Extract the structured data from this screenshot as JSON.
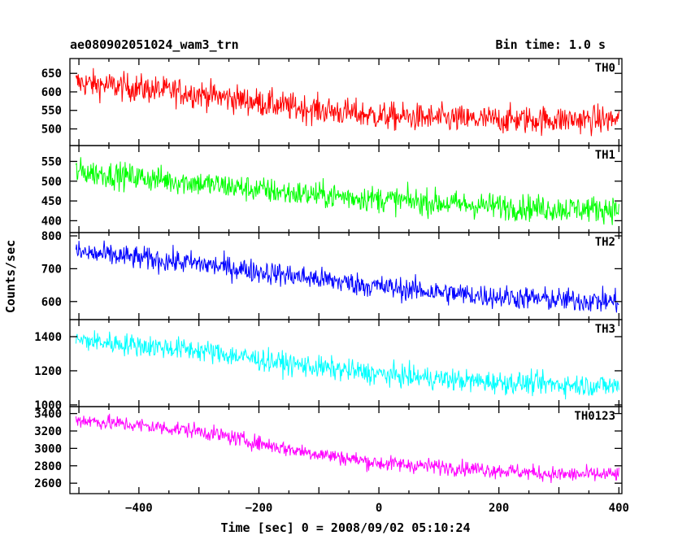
{
  "header": {
    "title": "ae080902051024_wam3_trn",
    "bin_time": "Bin time: 1.0 s"
  },
  "chart_data": {
    "type": "line",
    "xlabel": "Time [sec] 0 = 2008/09/02 05:10:24",
    "ylabel": "Counts/sec",
    "xlim": [
      -515,
      405
    ],
    "xticks": [
      -400,
      -200,
      0,
      200,
      400
    ],
    "bin_time_s": 1.0,
    "panels": [
      {
        "label": "TH0",
        "color": "#ff0000",
        "ylim": [
          455,
          690
        ],
        "yticks": [
          500,
          550,
          600,
          650
        ],
        "trend": [
          [
            -505,
            625
          ],
          [
            -300,
            595
          ],
          [
            -150,
            560
          ],
          [
            0,
            535
          ],
          [
            150,
            525
          ],
          [
            250,
            525
          ],
          [
            400,
            525
          ]
        ],
        "noise": 32
      },
      {
        "label": "TH1",
        "color": "#00ff00",
        "ylim": [
          370,
          590
        ],
        "yticks": [
          400,
          450,
          500,
          550
        ],
        "trend": [
          [
            -505,
            525
          ],
          [
            -300,
            495
          ],
          [
            -150,
            470
          ],
          [
            0,
            455
          ],
          [
            150,
            440
          ],
          [
            300,
            430
          ],
          [
            400,
            430
          ]
        ],
        "noise": 28
      },
      {
        "label": "TH2",
        "color": "#0000ff",
        "ylim": [
          545,
          810
        ],
        "yticks": [
          600,
          700,
          800
        ],
        "trend": [
          [
            -505,
            750
          ],
          [
            -300,
            715
          ],
          [
            -150,
            680
          ],
          [
            0,
            645
          ],
          [
            150,
            620
          ],
          [
            300,
            605
          ],
          [
            400,
            600
          ]
        ],
        "noise": 30
      },
      {
        "label": "TH3",
        "color": "#00ffff",
        "ylim": [
          990,
          1500
        ],
        "yticks": [
          1000,
          1200,
          1400
        ],
        "trend": [
          [
            -505,
            1380
          ],
          [
            -300,
            1320
          ],
          [
            -150,
            1240
          ],
          [
            0,
            1180
          ],
          [
            150,
            1140
          ],
          [
            300,
            1120
          ],
          [
            400,
            1110
          ]
        ],
        "noise": 55
      },
      {
        "label": "TH0123",
        "color": "#ff00ff",
        "ylim": [
          2480,
          3480
        ],
        "yticks": [
          2600,
          2800,
          3000,
          3200,
          3400
        ],
        "trend": [
          [
            -505,
            3330
          ],
          [
            -300,
            3200
          ],
          [
            -150,
            2990
          ],
          [
            0,
            2830
          ],
          [
            150,
            2770
          ],
          [
            300,
            2700
          ],
          [
            400,
            2700
          ]
        ],
        "noise": 75
      }
    ]
  }
}
